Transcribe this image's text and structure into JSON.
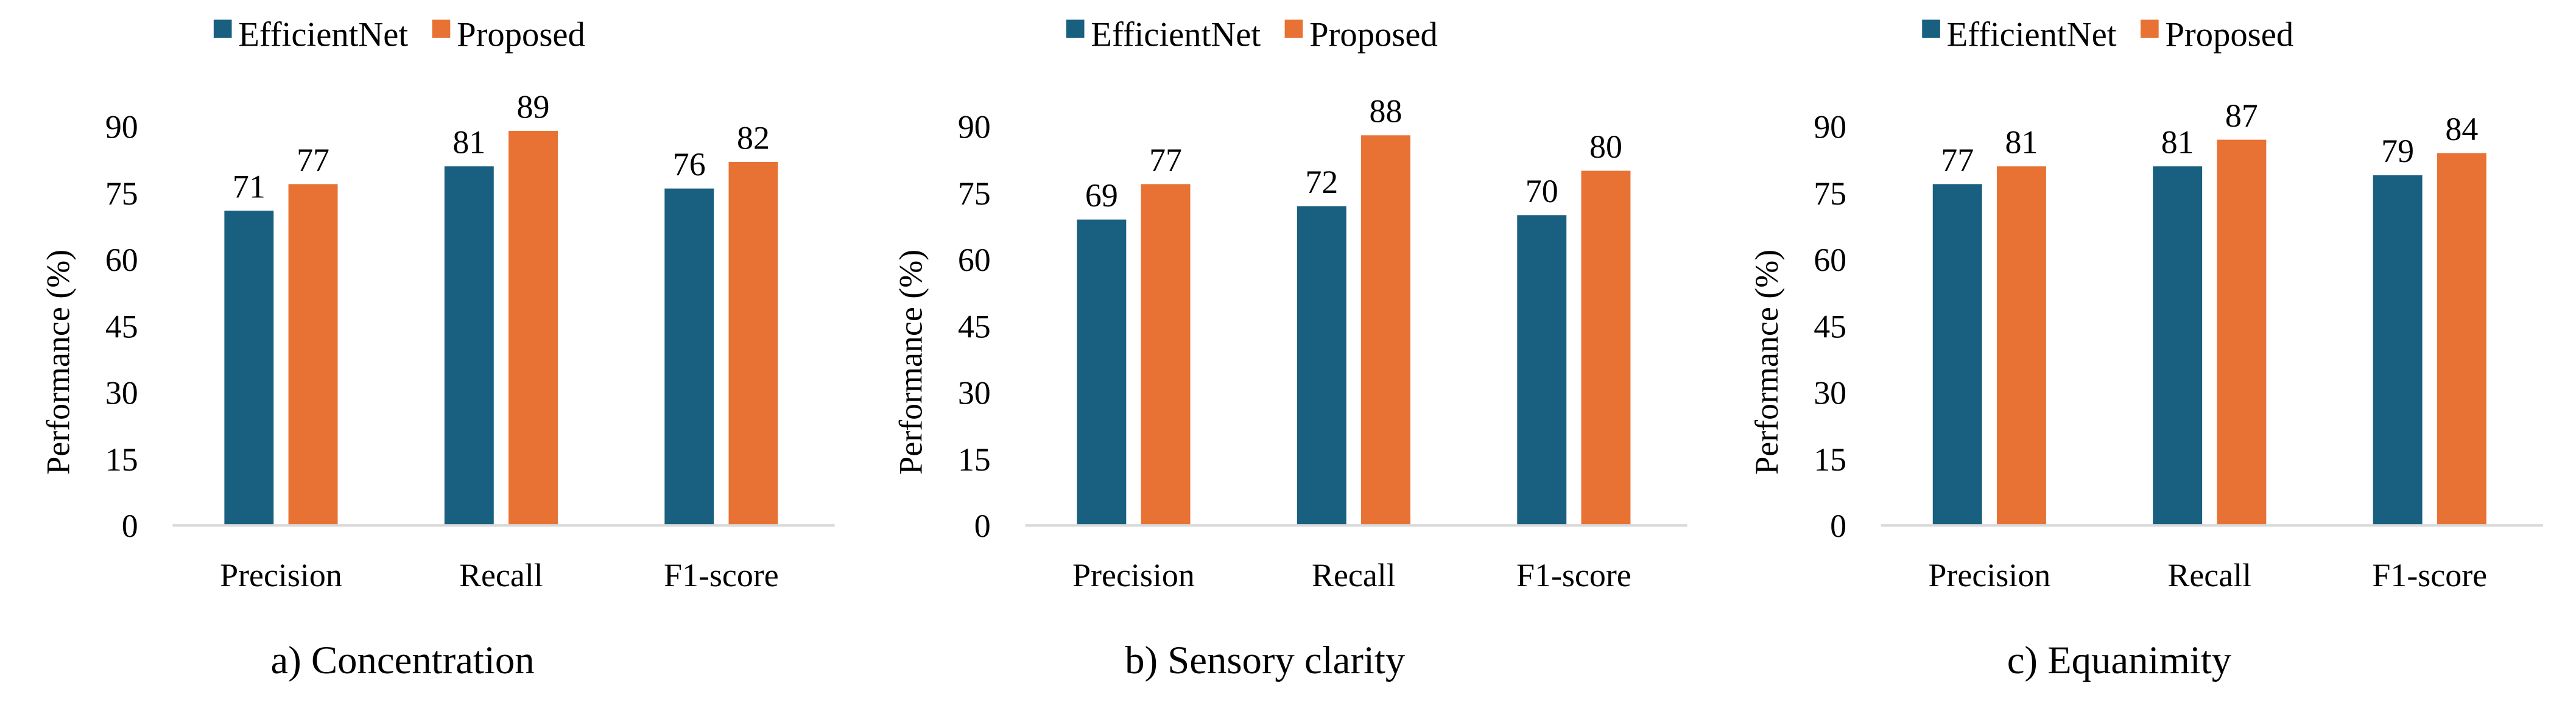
{
  "colors": {
    "EfficientNet": "#195f80",
    "Proposed": "#e87234",
    "axis": "#d9d9d9",
    "text": "#000000"
  },
  "chart_data": [
    {
      "type": "bar",
      "subtitle": "a) Concentration",
      "ylabel": "Performance (%)",
      "xlabel": "",
      "categories": [
        "Precision",
        "Recall",
        "F1-score"
      ],
      "yticks": [
        0,
        15,
        30,
        45,
        60,
        75,
        90
      ],
      "ylim": [
        0,
        90
      ],
      "grid": false,
      "legend": "top",
      "series": [
        {
          "name": "EfficientNet",
          "values": [
            71,
            81,
            76
          ]
        },
        {
          "name": "Proposed",
          "values": [
            77,
            89,
            82
          ]
        }
      ]
    },
    {
      "type": "bar",
      "subtitle": "b) Sensory clarity",
      "ylabel": "Performance (%)",
      "xlabel": "",
      "categories": [
        "Precision",
        "Recall",
        "F1-score"
      ],
      "yticks": [
        0,
        15,
        30,
        45,
        60,
        75,
        90
      ],
      "ylim": [
        0,
        90
      ],
      "grid": false,
      "legend": "top",
      "series": [
        {
          "name": "EfficientNet",
          "values": [
            69,
            72,
            70
          ]
        },
        {
          "name": "Proposed",
          "values": [
            77,
            88,
            80
          ]
        }
      ]
    },
    {
      "type": "bar",
      "subtitle": "c) Equanimity",
      "ylabel": "Performance (%)",
      "xlabel": "",
      "categories": [
        "Precision",
        "Recall",
        "F1-score"
      ],
      "yticks": [
        0,
        15,
        30,
        45,
        60,
        75,
        90
      ],
      "ylim": [
        0,
        90
      ],
      "grid": false,
      "legend": "top",
      "series": [
        {
          "name": "EfficientNet",
          "values": [
            77,
            81,
            79
          ]
        },
        {
          "name": "Proposed",
          "values": [
            81,
            87,
            84
          ]
        }
      ]
    }
  ]
}
